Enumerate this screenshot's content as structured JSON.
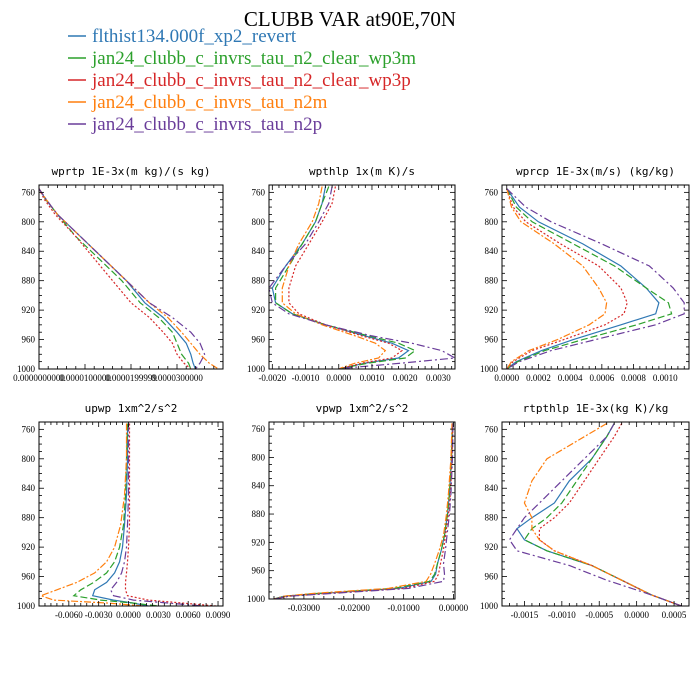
{
  "figure": {
    "title": "CLUBB VAR at90E,70N",
    "legend": [
      {
        "label": "flthist134.000f_xp2_revert",
        "color": "#2f78b4",
        "dash": ""
      },
      {
        "label": "jan24_clubb_c_invrs_tau_n2_clear_wp3m",
        "color": "#2ca02c",
        "dash": "7 3"
      },
      {
        "label": "jan24_clubb_c_invrs_tau_n2_clear_wp3p",
        "color": "#d62728",
        "dash": "2 2"
      },
      {
        "label": "jan24_clubb_c_invrs_tau_n2m",
        "color": "#ff7f0e",
        "dash": "7 2 2 2"
      },
      {
        "label": "jan24_clubb_c_invrs_tau_n2p",
        "color": "#6a3d9a",
        "dash": "8 3 2 3"
      }
    ]
  },
  "chart_data": [
    {
      "type": "line",
      "title": "wprtp  1E-3x(m kg)/(s kg)",
      "xlim": [
        0.0,
        4e-05
      ],
      "ylim": [
        750,
        1000
      ],
      "xticks": [
        "0.0000000000",
        "0.0000100000",
        "0.0000199999",
        "0.0000300000"
      ],
      "yticks": [
        "760",
        "800",
        "840",
        "880",
        "920",
        "960",
        "1000"
      ],
      "y": [
        755,
        770,
        790,
        820,
        850,
        880,
        910,
        930,
        950,
        965,
        980,
        992,
        1000
      ],
      "series": [
        {
          "name": "flthist134.000f_xp2_revert",
          "x": [
            0.0,
            1.5e-06,
            4e-06,
            9e-06,
            1.4e-05,
            1.9e-05,
            2.3e-05,
            2.7e-05,
            3e-05,
            3.2e-05,
            3.3e-05,
            3.35e-05,
            3.4e-05
          ]
        },
        {
          "name": "jan24_clubb_c_invrs_tau_n2_clear_wp3m",
          "x": [
            0.0,
            1.5e-06,
            4e-06,
            8e-06,
            1.3e-05,
            1.8e-05,
            2.2e-05,
            2.6e-05,
            2.9e-05,
            3e-05,
            3.1e-05,
            3.25e-05,
            3.3e-05
          ]
        },
        {
          "name": "jan24_clubb_c_invrs_tau_n2_clear_wp3p",
          "x": [
            0.0,
            1.2e-06,
            3.5e-06,
            8e-06,
            1.2e-05,
            1.6e-05,
            2e-05,
            2.4e-05,
            2.7e-05,
            2.9e-05,
            3e-05,
            3.15e-05,
            3.3e-05
          ]
        },
        {
          "name": "jan24_clubb_c_invrs_tau_n2m",
          "x": [
            0.0,
            1.6e-06,
            4e-06,
            9e-06,
            1.4e-05,
            1.9e-05,
            2.4e-05,
            2.8e-05,
            3.1e-05,
            3.3e-05,
            3.5e-05,
            3.7e-05,
            3.9e-05
          ]
        },
        {
          "name": "jan24_clubb_c_invrs_tau_n2p",
          "x": [
            0.0,
            1.6e-06,
            4e-06,
            9e-06,
            1.4e-05,
            1.9e-05,
            2.4e-05,
            2.9e-05,
            3.3e-05,
            3.5e-05,
            3.6e-05,
            3.5e-05,
            3.4e-05
          ]
        }
      ]
    },
    {
      "type": "line",
      "title": "wpthlp  1x(m K)/s",
      "xlim": [
        -0.0021,
        0.0035
      ],
      "ylim": [
        750,
        1000
      ],
      "xticks": [
        "-0.0020",
        "-0.0010",
        "0.0000",
        "0.0010",
        "0.0020",
        "0.0030"
      ],
      "yticks": [
        "760",
        "800",
        "840",
        "880",
        "920",
        "960",
        "1000"
      ],
      "y": [
        752,
        775,
        800,
        830,
        860,
        890,
        910,
        925,
        940,
        955,
        965,
        975,
        985,
        992,
        998,
        1000
      ],
      "series": [
        {
          "name": "flthist134.000f_xp2_revert",
          "x": [
            -0.0004,
            -0.0005,
            -0.0007,
            -0.0011,
            -0.0016,
            -0.002,
            -0.0019,
            -0.0014,
            -0.0004,
            0.0008,
            0.0016,
            0.0021,
            0.0018,
            0.0008,
            0.0002,
            0.0
          ]
        },
        {
          "name": "jan24_clubb_c_invrs_tau_n2_clear_wp3m",
          "x": [
            -0.0003,
            -0.0005,
            -0.0007,
            -0.0011,
            -0.0015,
            -0.0019,
            -0.0019,
            -0.0014,
            -0.0004,
            0.0009,
            0.0018,
            0.0023,
            0.002,
            0.0009,
            0.0002,
            0.0
          ]
        },
        {
          "name": "jan24_clubb_c_invrs_tau_n2_clear_wp3p",
          "x": [
            -0.0001,
            -0.0002,
            -0.0005,
            -0.0009,
            -0.0013,
            -0.0015,
            -0.0015,
            -0.0012,
            -0.0004,
            0.0007,
            0.0015,
            0.0019,
            0.0016,
            0.0007,
            0.0002,
            0.0
          ]
        },
        {
          "name": "jan24_clubb_c_invrs_tau_n2m",
          "x": [
            -0.0005,
            -0.0006,
            -0.0008,
            -0.0012,
            -0.0015,
            -0.0017,
            -0.0017,
            -0.0013,
            -0.0005,
            0.0005,
            0.0011,
            0.0014,
            0.0012,
            0.0005,
            0.0001,
            0.0
          ]
        },
        {
          "name": "jan24_clubb_c_invrs_tau_n2p",
          "x": [
            -0.0002,
            -0.0003,
            -0.0006,
            -0.001,
            -0.0016,
            -0.0021,
            -0.002,
            -0.0015,
            -0.0004,
            0.001,
            0.0022,
            0.0031,
            0.0035,
            0.0019,
            0.0004,
            0.0
          ]
        }
      ]
    },
    {
      "type": "line",
      "title": "wprcp  1E-3x(m/s) (kg/kg)",
      "xlim": [
        -3e-05,
        0.00115
      ],
      "ylim": [
        750,
        1000
      ],
      "xticks": [
        "0.0000",
        "0.0002",
        "0.0004",
        "0.0006",
        "0.0008",
        "0.0010"
      ],
      "yticks": [
        "760",
        "800",
        "840",
        "880",
        "920",
        "960",
        "1000"
      ],
      "y": [
        755,
        780,
        800,
        830,
        860,
        890,
        910,
        925,
        940,
        960,
        975,
        990,
        1000
      ],
      "series": [
        {
          "name": "flthist134.000f_xp2_revert",
          "x": [
            0.0,
            8e-05,
            0.0002,
            0.00048,
            0.00072,
            0.00088,
            0.00096,
            0.00094,
            0.00072,
            0.00042,
            0.00022,
            6e-05,
            0.0
          ]
        },
        {
          "name": "jan24_clubb_c_invrs_tau_n2_clear_wp3m",
          "x": [
            0.0,
            6e-05,
            0.00016,
            0.00042,
            0.00068,
            0.00088,
            0.00102,
            0.00104,
            0.00082,
            0.00048,
            0.00024,
            7e-05,
            0.0
          ]
        },
        {
          "name": "jan24_clubb_c_invrs_tau_n2_clear_wp3p",
          "x": [
            0.0,
            4e-05,
            0.00012,
            0.00034,
            0.00058,
            0.00072,
            0.00076,
            0.00074,
            0.00062,
            0.00036,
            0.00016,
            4e-05,
            0.0
          ]
        },
        {
          "name": "jan24_clubb_c_invrs_tau_n2m",
          "x": [
            0.0,
            3e-05,
            9e-05,
            0.0003,
            0.00048,
            0.00058,
            0.00063,
            0.00062,
            0.00052,
            0.00032,
            0.00014,
            3e-05,
            0.0
          ]
        },
        {
          "name": "jan24_clubb_c_invrs_tau_n2p",
          "x": [
            0.0,
            0.00012,
            0.00028,
            0.0006,
            0.0009,
            0.00105,
            0.00112,
            0.00112,
            0.00094,
            0.00056,
            0.00028,
            8e-05,
            0.0
          ]
        }
      ]
    },
    {
      "type": "line",
      "title": "upwp  1xm^2/s^2",
      "xlim": [
        -0.009,
        0.0095
      ],
      "ylim": [
        750,
        1000
      ],
      "xticks": [
        "-0.0060",
        "-0.0030",
        "0.0000",
        "0.0030",
        "0.0060",
        "0.0090"
      ],
      "yticks": [
        "760",
        "800",
        "840",
        "880",
        "920",
        "960",
        "1000"
      ],
      "y": [
        752,
        800,
        850,
        890,
        920,
        940,
        955,
        968,
        978,
        986,
        992,
        996,
        1000
      ],
      "series": [
        {
          "name": "flthist134.000f_xp2_revert",
          "x": [
            -0.0001,
            -0.0001,
            -0.0002,
            -0.0004,
            -0.0006,
            -0.0009,
            -0.0014,
            -0.0022,
            -0.0034,
            -0.0036,
            -0.0015,
            0.0005,
            0.002
          ]
        },
        {
          "name": "jan24_clubb_c_invrs_tau_n2_clear_wp3m",
          "x": [
            -0.0001,
            -0.0002,
            -0.0003,
            -0.0005,
            -0.0009,
            -0.0014,
            -0.0022,
            -0.0035,
            -0.0048,
            -0.0055,
            -0.0028,
            0.0005,
            0.003
          ]
        },
        {
          "name": "jan24_clubb_c_invrs_tau_n2_clear_wp3p",
          "x": [
            0.0001,
            0.0001,
            0.0001,
            0.0001,
            0.0,
            -0.0001,
            -0.0002,
            -0.0003,
            -0.0003,
            -0.0001,
            0.002,
            0.0055,
            0.0088
          ]
        },
        {
          "name": "jan24_clubb_c_invrs_tau_n2m",
          "x": [
            -0.0002,
            -0.0002,
            -0.0004,
            -0.0008,
            -0.0014,
            -0.0022,
            -0.0034,
            -0.0052,
            -0.0072,
            -0.0088,
            -0.0075,
            -0.002,
            0.0015
          ]
        },
        {
          "name": "jan24_clubb_c_invrs_tau_n2p",
          "x": [
            0.0,
            0.0,
            0.0,
            -0.0001,
            -0.0002,
            -0.0004,
            -0.0007,
            -0.0012,
            -0.0018,
            -0.0015,
            0.0005,
            0.004,
            0.0075
          ]
        }
      ]
    },
    {
      "type": "line",
      "title": "vpwp  1xm^2/s^2",
      "xlim": [
        -0.037,
        0.0003
      ],
      "ylim": [
        750,
        1000
      ],
      "xticks": [
        "-0.03000",
        "-0.02000",
        "-0.01000",
        "0.00000"
      ],
      "yticks": [
        "760",
        "800",
        "840",
        "880",
        "920",
        "960",
        "1000"
      ],
      "y": [
        752,
        800,
        850,
        880,
        910,
        930,
        950,
        965,
        975,
        985,
        992,
        996,
        1000
      ],
      "series": [
        {
          "name": "flthist134.000f_xp2_revert",
          "x": [
            -0.0002,
            -0.0004,
            -0.0008,
            -0.0012,
            -0.0018,
            -0.0024,
            -0.0032,
            -0.0036,
            -0.0045,
            -0.011,
            -0.026,
            -0.034,
            -0.036
          ]
        },
        {
          "name": "jan24_clubb_c_invrs_tau_n2_clear_wp3m",
          "x": [
            -0.0002,
            -0.0004,
            -0.0008,
            -0.0012,
            -0.0018,
            -0.0024,
            -0.0032,
            -0.0038,
            -0.0048,
            -0.012,
            -0.027,
            -0.034,
            -0.036
          ]
        },
        {
          "name": "jan24_clubb_c_invrs_tau_n2_clear_wp3p",
          "x": [
            -0.0001,
            -0.0003,
            -0.0006,
            -0.001,
            -0.0016,
            -0.002,
            -0.0026,
            -0.003,
            -0.0038,
            -0.01,
            -0.025,
            -0.033,
            -0.036
          ]
        },
        {
          "name": "jan24_clubb_c_invrs_tau_n2m",
          "x": [
            -0.0003,
            -0.0005,
            -0.001,
            -0.0014,
            -0.002,
            -0.0028,
            -0.0038,
            -0.0046,
            -0.0055,
            -0.013,
            -0.028,
            -0.034,
            -0.036
          ]
        },
        {
          "name": "jan24_clubb_c_invrs_tau_n2p",
          "x": [
            -0.0001,
            -0.0002,
            -0.0005,
            -0.0008,
            -0.0013,
            -0.0016,
            -0.002,
            -0.0018,
            -0.002,
            -0.009,
            -0.024,
            -0.033,
            -0.036
          ]
        }
      ]
    },
    {
      "type": "line",
      "title": "rtpthlp  1E-3x(kg K)/kg",
      "xlim": [
        -0.0018,
        0.0007
      ],
      "ylim": [
        750,
        1000
      ],
      "xticks": [
        "-0.0015",
        "-0.0010",
        "-0.0005",
        "0.0000",
        "0.0005"
      ],
      "yticks": [
        "760",
        "800",
        "840",
        "880",
        "920",
        "960",
        "1000"
      ],
      "y": [
        752,
        770,
        800,
        830,
        860,
        880,
        895,
        910,
        925,
        945,
        965,
        985,
        1000
      ],
      "series": [
        {
          "name": "flthist134.000f_xp2_revert",
          "x": [
            -0.0003,
            -0.0004,
            -0.0006,
            -0.0009,
            -0.0011,
            -0.0014,
            -0.0016,
            -0.0015,
            -0.0012,
            -0.0006,
            -0.0002,
            0.0002,
            0.0006
          ]
        },
        {
          "name": "jan24_clubb_c_invrs_tau_n2_clear_wp3m",
          "x": [
            -0.0003,
            -0.0004,
            -0.0006,
            -0.0008,
            -0.001,
            -0.0012,
            -0.0014,
            -0.0015,
            -0.0012,
            -0.0006,
            -0.0002,
            0.0002,
            0.0006
          ]
        },
        {
          "name": "jan24_clubb_c_invrs_tau_n2_clear_wp3p",
          "x": [
            -0.0002,
            -0.0003,
            -0.0005,
            -0.0007,
            -0.0009,
            -0.0011,
            -0.0013,
            -0.0013,
            -0.0011,
            -0.0006,
            -0.0002,
            0.0002,
            0.0006
          ]
        },
        {
          "name": "jan24_clubb_c_invrs_tau_n2m",
          "x": [
            -0.0004,
            -0.0007,
            -0.0012,
            -0.0014,
            -0.0015,
            -0.0014,
            -0.0014,
            -0.0013,
            -0.0011,
            -0.0006,
            -0.0002,
            0.0002,
            0.0006
          ]
        },
        {
          "name": "jan24_clubb_c_invrs_tau_n2p",
          "x": [
            -0.0003,
            -0.0004,
            -0.0007,
            -0.001,
            -0.0013,
            -0.0015,
            -0.0016,
            -0.0017,
            -0.0016,
            -0.0009,
            -0.0004,
            0.0002,
            0.0006
          ]
        }
      ]
    }
  ]
}
